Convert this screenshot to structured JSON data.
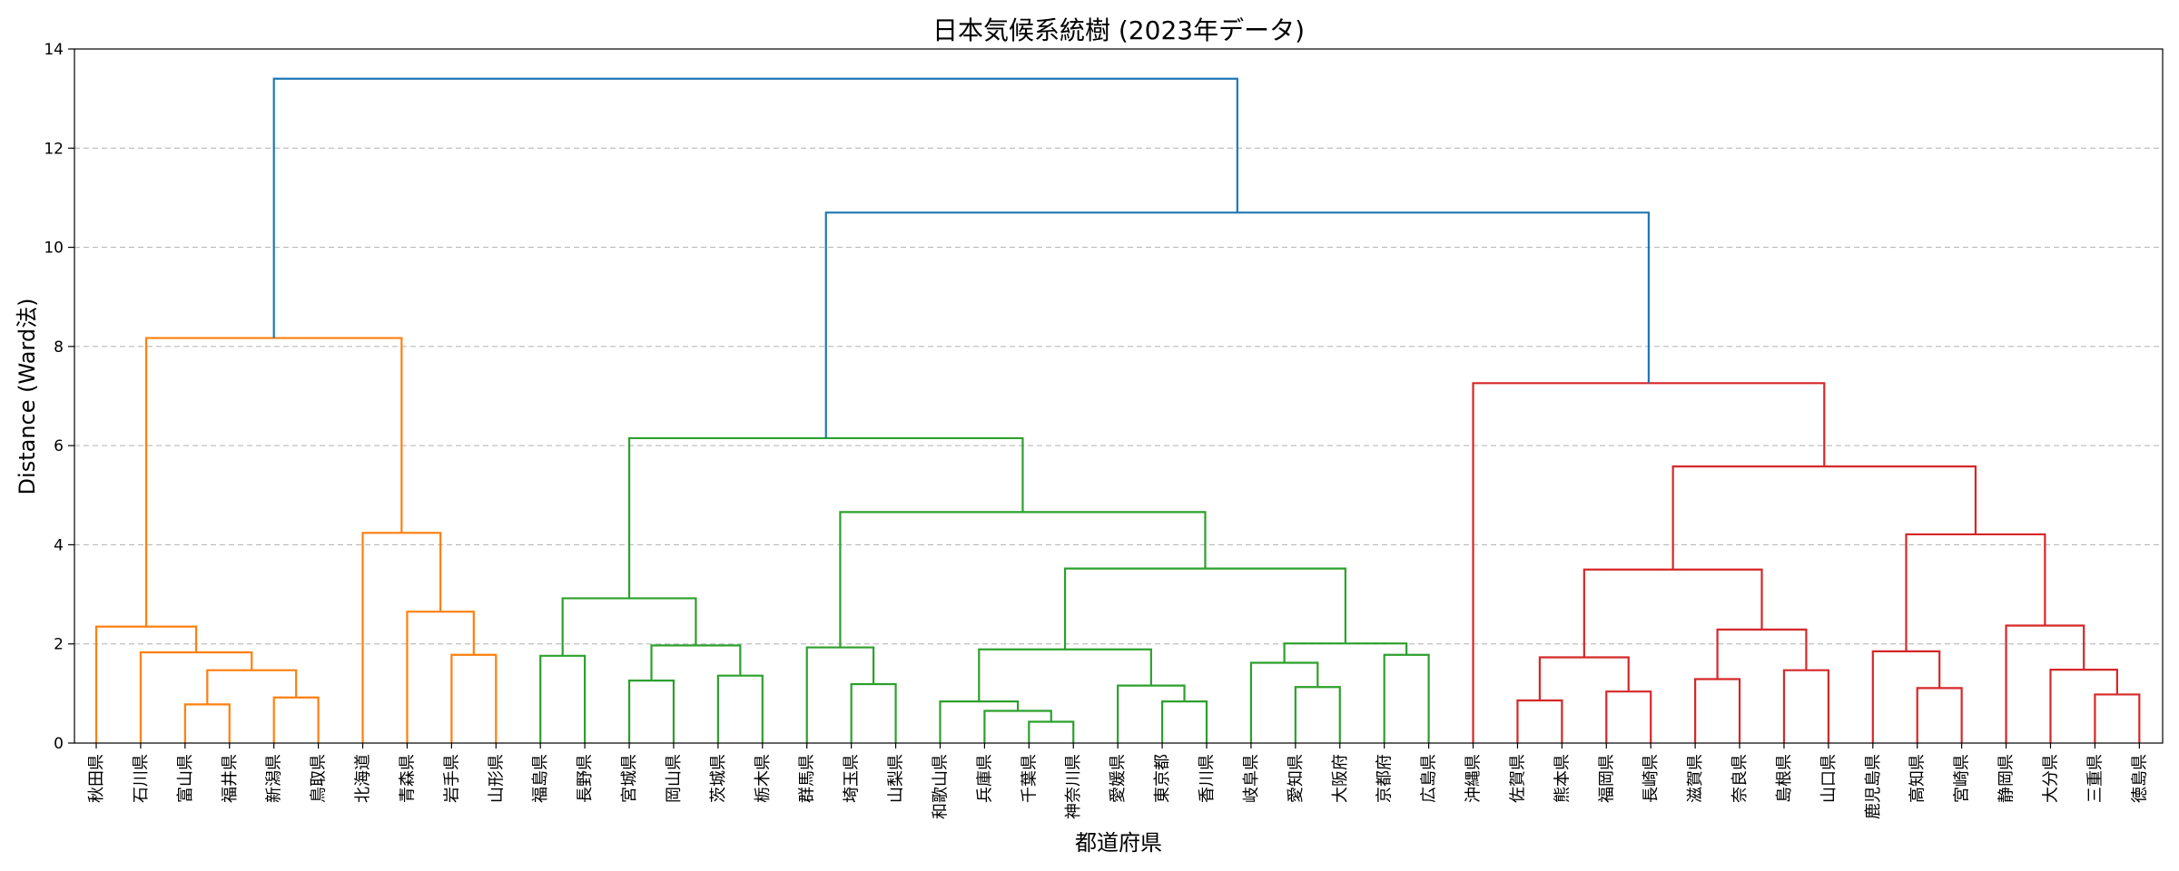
{
  "chart_data": {
    "type": "dendrogram",
    "title": "日本気候系統樹 (2023年データ)",
    "xlabel": "都道府県",
    "ylabel": "Distance (Ward法)",
    "ylim": [
      0,
      14
    ],
    "yticks": [
      0,
      2,
      4,
      6,
      8,
      10,
      12,
      14
    ],
    "grid": "y-dashed",
    "colors": {
      "top": "#1f77b4",
      "orange": "#ff7f0e",
      "green": "#2ca02c",
      "red": "#d62728"
    },
    "leaves": [
      "秋田県",
      "石川県",
      "富山県",
      "福井県",
      "新潟県",
      "鳥取県",
      "北海道",
      "青森県",
      "岩手県",
      "山形県",
      "福島県",
      "長野県",
      "宮城県",
      "岡山県",
      "茨城県",
      "栃木県",
      "群馬県",
      "埼玉県",
      "山梨県",
      "和歌山県",
      "兵庫県",
      "千葉県",
      "神奈川県",
      "愛媛県",
      "東京都",
      "香川県",
      "岐阜県",
      "愛知県",
      "大阪府",
      "京都府",
      "広島県",
      "沖縄県",
      "佐賀県",
      "熊本県",
      "福岡県",
      "長崎県",
      "滋賀県",
      "奈良県",
      "島根県",
      "山口県",
      "鹿児島県",
      "高知県",
      "宮崎県",
      "静岡県",
      "大分県",
      "三重県",
      "徳島県"
    ],
    "merges": [
      {
        "left": "L2",
        "right": "L3",
        "height": 0.78,
        "color": "orange"
      },
      {
        "left": "L4",
        "right": "L5",
        "height": 0.92,
        "color": "orange"
      },
      {
        "left": 0,
        "right": 1,
        "height": 1.47,
        "color": "orange"
      },
      {
        "left": "L1",
        "right": 2,
        "height": 1.83,
        "color": "orange"
      },
      {
        "left": "L0",
        "right": 3,
        "height": 2.35,
        "color": "orange"
      },
      {
        "left": "L8",
        "right": "L9",
        "height": 1.78,
        "color": "orange"
      },
      {
        "left": "L7",
        "right": 5,
        "height": 2.65,
        "color": "orange"
      },
      {
        "left": "L6",
        "right": 6,
        "height": 4.24,
        "color": "orange"
      },
      {
        "left": 4,
        "right": 7,
        "height": 8.17,
        "color": "orange"
      },
      {
        "left": "L10",
        "right": "L11",
        "height": 1.76,
        "color": "green"
      },
      {
        "left": "L12",
        "right": "L13",
        "height": 1.26,
        "color": "green"
      },
      {
        "left": "L14",
        "right": "L15",
        "height": 1.36,
        "color": "green"
      },
      {
        "left": 10,
        "right": 11,
        "height": 1.97,
        "color": "green"
      },
      {
        "left": 9,
        "right": 12,
        "height": 2.92,
        "color": "green"
      },
      {
        "left": "L17",
        "right": "L18",
        "height": 1.19,
        "color": "green"
      },
      {
        "left": "L16",
        "right": 14,
        "height": 1.93,
        "color": "green"
      },
      {
        "left": "L21",
        "right": "L22",
        "height": 0.43,
        "color": "green"
      },
      {
        "left": "L20",
        "right": 16,
        "height": 0.65,
        "color": "green"
      },
      {
        "left": "L19",
        "right": 17,
        "height": 0.84,
        "color": "green"
      },
      {
        "left": "L24",
        "right": "L25",
        "height": 0.84,
        "color": "green"
      },
      {
        "left": "L23",
        "right": 19,
        "height": 1.16,
        "color": "green"
      },
      {
        "left": 18,
        "right": 20,
        "height": 1.89,
        "color": "green"
      },
      {
        "left": "L27",
        "right": "L28",
        "height": 1.13,
        "color": "green"
      },
      {
        "left": "L26",
        "right": 22,
        "height": 1.62,
        "color": "green"
      },
      {
        "left": "L29",
        "right": "L30",
        "height": 1.78,
        "color": "green"
      },
      {
        "left": 23,
        "right": 24,
        "height": 2.01,
        "color": "green"
      },
      {
        "left": 21,
        "right": 25,
        "height": 3.52,
        "color": "green"
      },
      {
        "left": 15,
        "right": 26,
        "height": 4.66,
        "color": "green"
      },
      {
        "left": 13,
        "right": 27,
        "height": 6.15,
        "color": "green"
      },
      {
        "left": "L32",
        "right": "L33",
        "height": 0.86,
        "color": "red"
      },
      {
        "left": "L34",
        "right": "L35",
        "height": 1.04,
        "color": "red"
      },
      {
        "left": 29,
        "right": 30,
        "height": 1.73,
        "color": "red"
      },
      {
        "left": "L36",
        "right": "L37",
        "height": 1.29,
        "color": "red"
      },
      {
        "left": "L38",
        "right": "L39",
        "height": 1.47,
        "color": "red"
      },
      {
        "left": 32,
        "right": 33,
        "height": 2.29,
        "color": "red"
      },
      {
        "left": 31,
        "right": 34,
        "height": 3.5,
        "color": "red"
      },
      {
        "left": "L41",
        "right": "L42",
        "height": 1.11,
        "color": "red"
      },
      {
        "left": "L40",
        "right": 36,
        "height": 1.85,
        "color": "red"
      },
      {
        "left": "L45",
        "right": "L46",
        "height": 0.98,
        "color": "red"
      },
      {
        "left": "L44",
        "right": 38,
        "height": 1.48,
        "color": "red"
      },
      {
        "left": "L43",
        "right": 39,
        "height": 2.37,
        "color": "red"
      },
      {
        "left": 37,
        "right": 40,
        "height": 4.21,
        "color": "red"
      },
      {
        "left": 35,
        "right": 41,
        "height": 5.58,
        "color": "red"
      },
      {
        "left": "L31",
        "right": 42,
        "height": 7.26,
        "color": "red"
      },
      {
        "left": 28,
        "right": 43,
        "height": 10.7,
        "color": "top"
      },
      {
        "left": 8,
        "right": 44,
        "height": 13.4,
        "color": "top"
      }
    ]
  }
}
